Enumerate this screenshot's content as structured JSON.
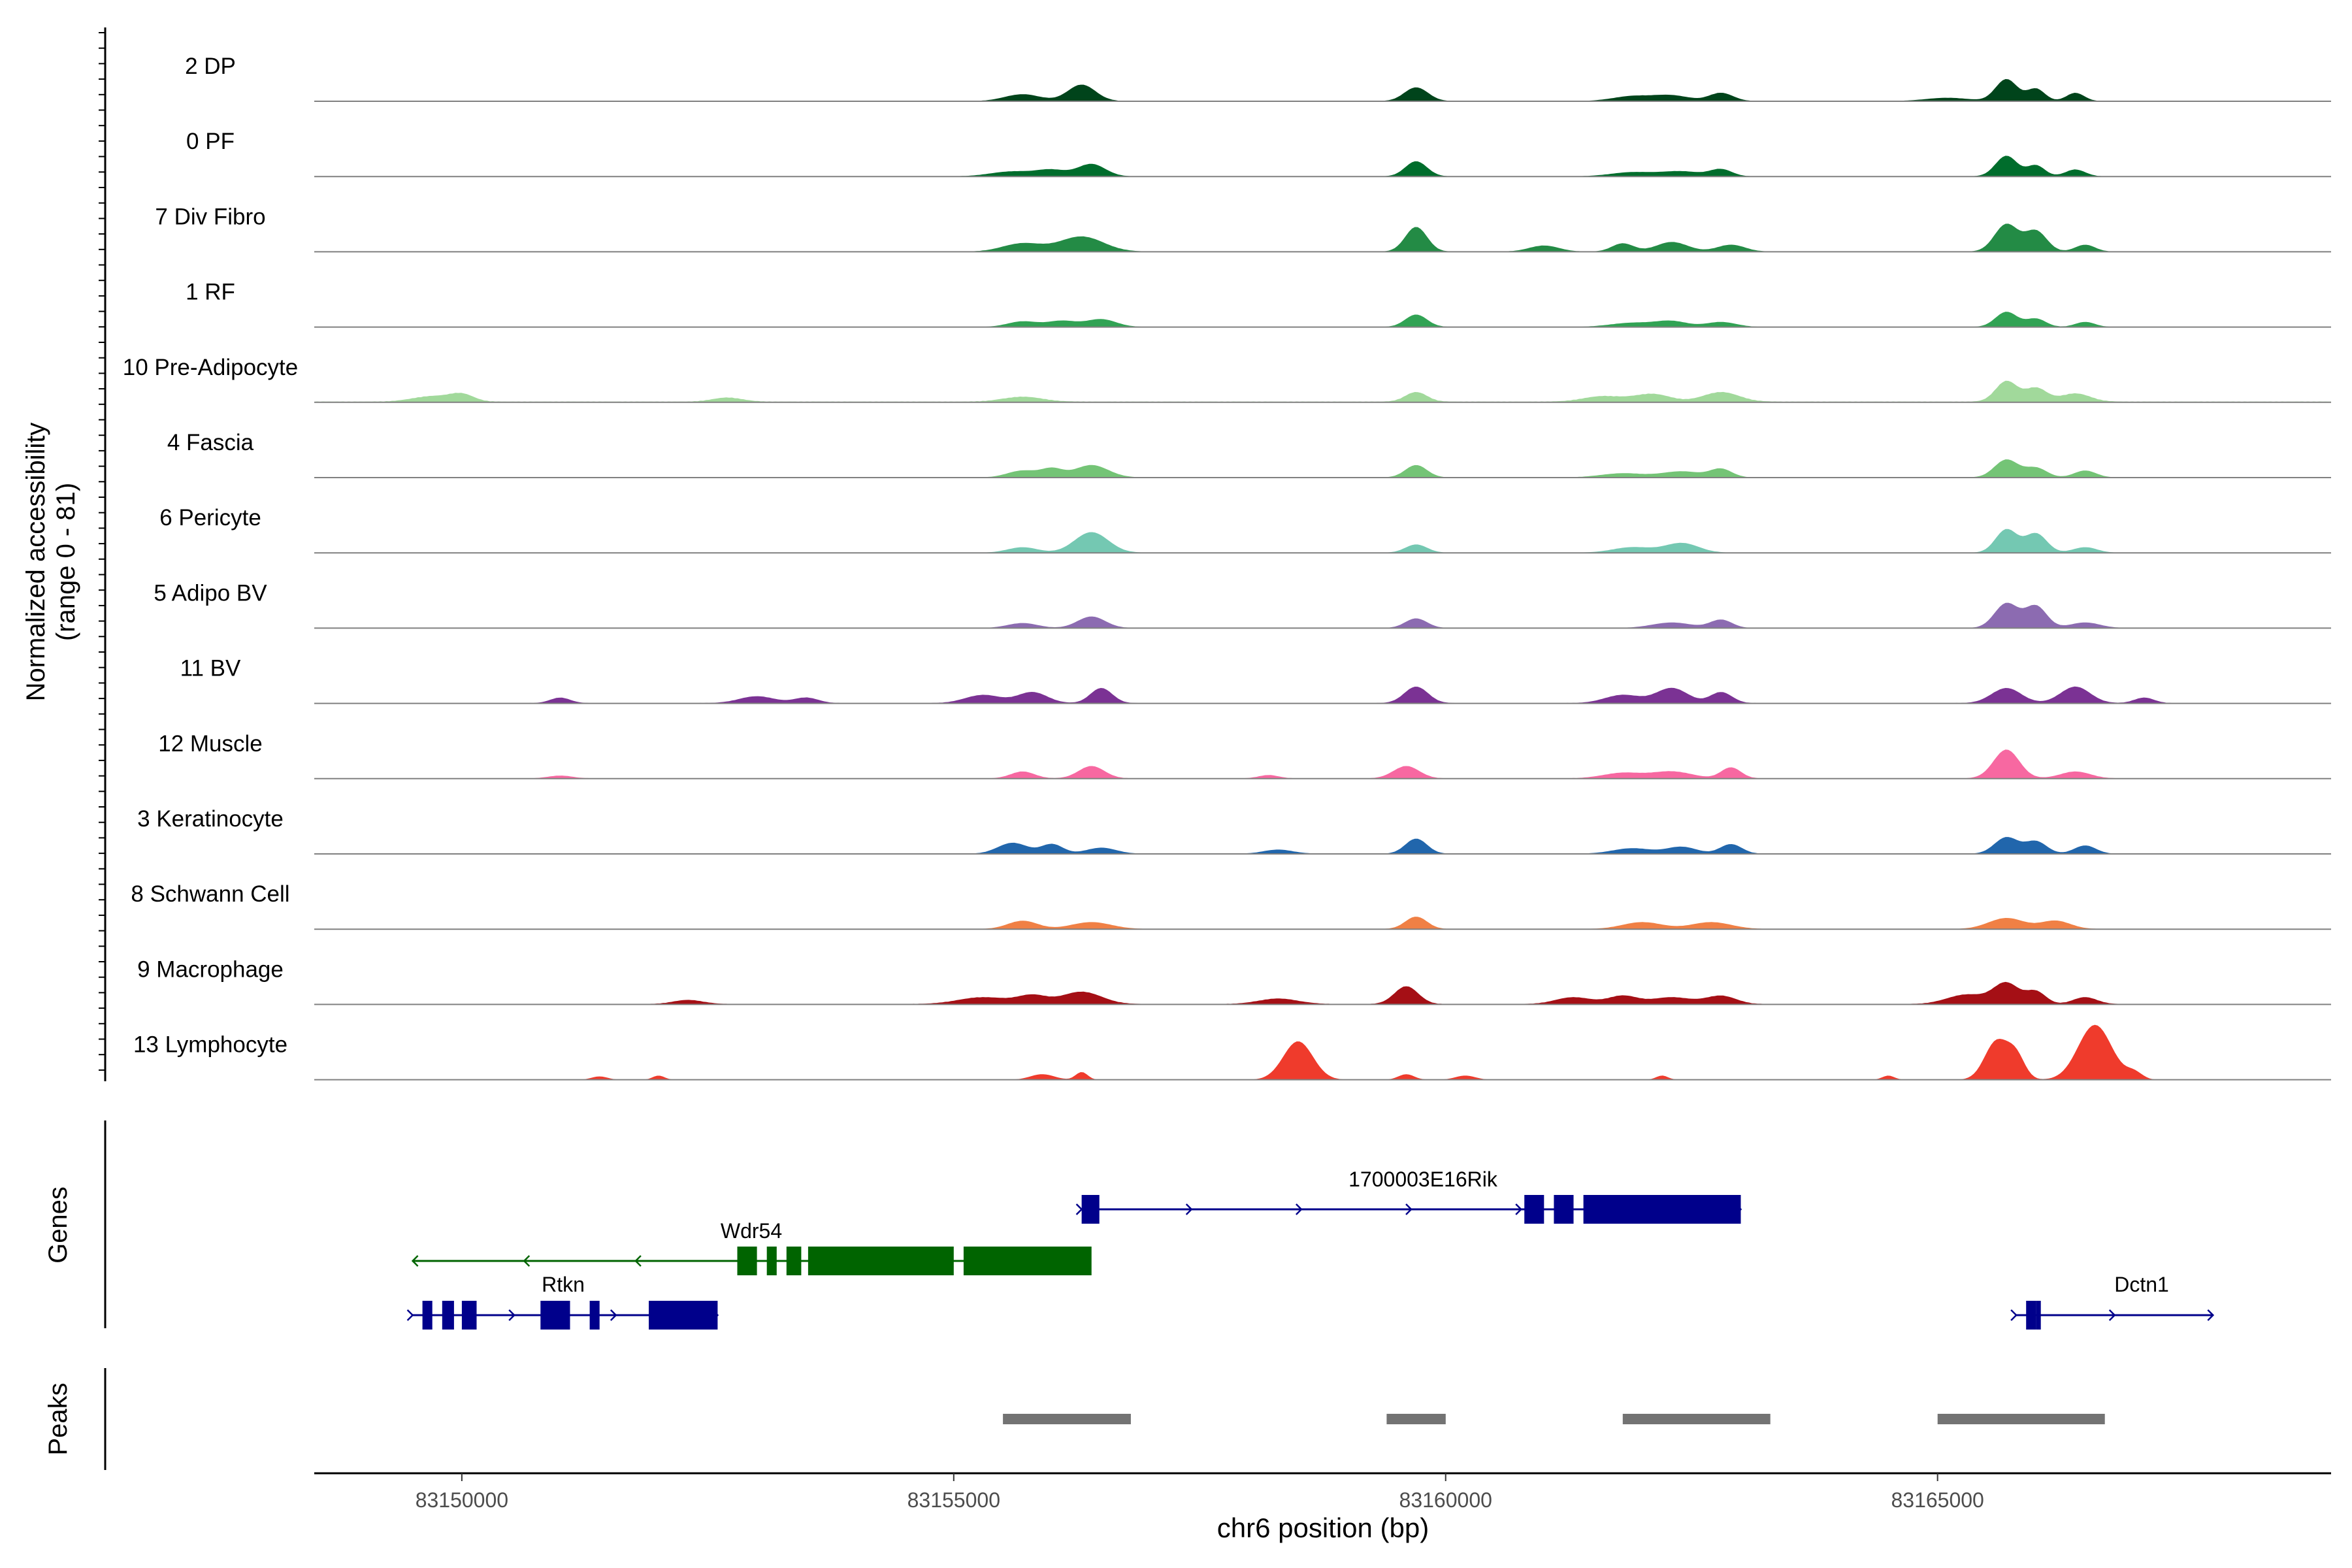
{
  "chart_data": {
    "type": "area",
    "chromosome": "chr6",
    "xlabel": "chr6 position (bp)",
    "ylabel_line1": "Normalized accessibility",
    "ylabel_line2": "(range 0 - 81)",
    "genes_panel_label": "Genes",
    "peaks_panel_label": "Peaks",
    "xlim": [
      83148500,
      83169000
    ],
    "ylim": [
      0,
      81
    ],
    "x_ticks": [
      83150000,
      83155000,
      83160000,
      83165000
    ],
    "x_tick_labels": [
      "83150000",
      "83155000",
      "83160000",
      "83165000"
    ],
    "tracks": [
      {
        "name": "2 DP",
        "color": "#00441b",
        "baseline": 0.4,
        "peaks": [
          [
            83155700,
            0.25,
            180
          ],
          [
            83156300,
            0.6,
            140
          ],
          [
            83159700,
            0.5,
            120
          ],
          [
            83161900,
            0.18,
            200
          ],
          [
            83162300,
            0.2,
            180
          ],
          [
            83162800,
            0.3,
            120
          ],
          [
            83165700,
            0.8,
            110
          ],
          [
            83166000,
            0.45,
            90
          ],
          [
            83166400,
            0.3,
            90
          ],
          [
            83165100,
            0.12,
            220
          ]
        ]
      },
      {
        "name": "0 PF",
        "color": "#006d2c",
        "baseline": 0.4,
        "peaks": [
          [
            83155600,
            0.18,
            220
          ],
          [
            83156000,
            0.22,
            150
          ],
          [
            83156400,
            0.45,
            140
          ],
          [
            83159700,
            0.55,
            110
          ],
          [
            83161900,
            0.15,
            220
          ],
          [
            83162400,
            0.18,
            200
          ],
          [
            83162800,
            0.25,
            110
          ],
          [
            83165700,
            0.75,
            110
          ],
          [
            83166000,
            0.4,
            90
          ],
          [
            83166400,
            0.25,
            100
          ]
        ]
      },
      {
        "name": "7 Div Fibro",
        "color": "#238b45",
        "baseline": 0.45,
        "peaks": [
          [
            83155700,
            0.3,
            200
          ],
          [
            83156300,
            0.55,
            220
          ],
          [
            83159700,
            0.9,
            110
          ],
          [
            83161000,
            0.22,
            150
          ],
          [
            83161800,
            0.3,
            110
          ],
          [
            83162300,
            0.35,
            160
          ],
          [
            83162900,
            0.25,
            140
          ],
          [
            83165700,
            1.0,
            120
          ],
          [
            83166000,
            0.75,
            110
          ],
          [
            83166500,
            0.25,
            100
          ]
        ]
      },
      {
        "name": "1 RF",
        "color": "#31a354",
        "baseline": 0.35,
        "peaks": [
          [
            83155700,
            0.2,
            150
          ],
          [
            83156100,
            0.22,
            150
          ],
          [
            83156500,
            0.28,
            150
          ],
          [
            83159700,
            0.45,
            110
          ],
          [
            83161900,
            0.15,
            220
          ],
          [
            83162300,
            0.2,
            160
          ],
          [
            83162800,
            0.18,
            150
          ],
          [
            83165700,
            0.55,
            110
          ],
          [
            83166000,
            0.3,
            100
          ],
          [
            83166500,
            0.18,
            100
          ]
        ]
      },
      {
        "name": "10 Pre-Adipocyte",
        "color": "#a1d99b",
        "baseline": 1.3,
        "peaks": [
          [
            83149700,
            0.2,
            200
          ],
          [
            83150000,
            0.25,
            120
          ],
          [
            83152700,
            0.15,
            150
          ],
          [
            83155700,
            0.18,
            200
          ],
          [
            83159700,
            0.35,
            110
          ],
          [
            83161600,
            0.2,
            200
          ],
          [
            83162100,
            0.28,
            180
          ],
          [
            83162800,
            0.35,
            180
          ],
          [
            83165700,
            0.75,
            110
          ],
          [
            83166000,
            0.5,
            110
          ],
          [
            83166400,
            0.3,
            150
          ]
        ]
      },
      {
        "name": "4 Fascia",
        "color": "#74c476",
        "baseline": 0.4,
        "peaks": [
          [
            83155700,
            0.25,
            150
          ],
          [
            83156000,
            0.3,
            110
          ],
          [
            83156400,
            0.45,
            170
          ],
          [
            83159700,
            0.45,
            110
          ],
          [
            83161800,
            0.15,
            220
          ],
          [
            83162400,
            0.22,
            200
          ],
          [
            83162800,
            0.3,
            110
          ],
          [
            83165700,
            0.65,
            120
          ],
          [
            83166000,
            0.35,
            110
          ],
          [
            83166500,
            0.25,
            110
          ]
        ]
      },
      {
        "name": "6 Pericyte",
        "color": "#74c8b2",
        "baseline": 0.35,
        "peaks": [
          [
            83155700,
            0.2,
            150
          ],
          [
            83156400,
            0.75,
            170
          ],
          [
            83159700,
            0.3,
            110
          ],
          [
            83161900,
            0.2,
            200
          ],
          [
            83162400,
            0.35,
            170
          ],
          [
            83165700,
            0.85,
            110
          ],
          [
            83166000,
            0.7,
            110
          ],
          [
            83166500,
            0.2,
            120
          ]
        ]
      },
      {
        "name": "5 Adipo BV",
        "color": "#8c6bb1",
        "baseline": 0.3,
        "peaks": [
          [
            83155700,
            0.18,
            150
          ],
          [
            83156400,
            0.42,
            140
          ],
          [
            83159700,
            0.35,
            110
          ],
          [
            83162300,
            0.2,
            200
          ],
          [
            83162800,
            0.3,
            110
          ],
          [
            83165700,
            0.9,
            120
          ],
          [
            83166000,
            0.8,
            110
          ],
          [
            83166500,
            0.2,
            150
          ]
        ]
      },
      {
        "name": "11 BV",
        "color": "#7b3294",
        "baseline": 0.6,
        "peaks": [
          [
            83151000,
            0.2,
            100
          ],
          [
            83153000,
            0.25,
            180
          ],
          [
            83153500,
            0.2,
            120
          ],
          [
            83155300,
            0.3,
            180
          ],
          [
            83155800,
            0.4,
            150
          ],
          [
            83156500,
            0.55,
            110
          ],
          [
            83159700,
            0.6,
            120
          ],
          [
            83161800,
            0.3,
            180
          ],
          [
            83162300,
            0.55,
            160
          ],
          [
            83162800,
            0.4,
            110
          ],
          [
            83165700,
            0.55,
            150
          ],
          [
            83166400,
            0.6,
            150
          ],
          [
            83167100,
            0.2,
            100
          ]
        ]
      },
      {
        "name": "12 Muscle",
        "color": "#f768a1",
        "baseline": 0.6,
        "peaks": [
          [
            83151000,
            0.1,
            120
          ],
          [
            83155700,
            0.25,
            120
          ],
          [
            83156400,
            0.45,
            130
          ],
          [
            83158200,
            0.12,
            100
          ],
          [
            83159600,
            0.45,
            130
          ],
          [
            83161800,
            0.2,
            200
          ],
          [
            83162300,
            0.25,
            200
          ],
          [
            83162900,
            0.4,
            100
          ],
          [
            83165700,
            1.05,
            130
          ],
          [
            83166400,
            0.25,
            150
          ]
        ]
      },
      {
        "name": "3 Keratinocyte",
        "color": "#2166ac",
        "baseline": 0.4,
        "peaks": [
          [
            83155600,
            0.4,
            150
          ],
          [
            83156000,
            0.35,
            110
          ],
          [
            83156500,
            0.22,
            150
          ],
          [
            83158300,
            0.15,
            150
          ],
          [
            83159700,
            0.55,
            110
          ],
          [
            83161900,
            0.2,
            200
          ],
          [
            83162400,
            0.25,
            150
          ],
          [
            83162900,
            0.35,
            110
          ],
          [
            83165700,
            0.6,
            120
          ],
          [
            83166000,
            0.45,
            110
          ],
          [
            83166500,
            0.3,
            110
          ]
        ]
      },
      {
        "name": "8 Schwann Cell",
        "color": "#f08045",
        "baseline": 0.4,
        "peaks": [
          [
            83155700,
            0.3,
            150
          ],
          [
            83156400,
            0.25,
            200
          ],
          [
            83159700,
            0.45,
            110
          ],
          [
            83162000,
            0.25,
            200
          ],
          [
            83162700,
            0.25,
            200
          ],
          [
            83165700,
            0.4,
            180
          ],
          [
            83166200,
            0.3,
            150
          ]
        ]
      },
      {
        "name": "9 Macrophage",
        "color": "#a50f15",
        "baseline": 0.8,
        "peaks": [
          [
            83152300,
            0.15,
            150
          ],
          [
            83155300,
            0.25,
            250
          ],
          [
            83155800,
            0.3,
            150
          ],
          [
            83156300,
            0.45,
            200
          ],
          [
            83158300,
            0.2,
            200
          ],
          [
            83159600,
            0.65,
            120
          ],
          [
            83161300,
            0.25,
            180
          ],
          [
            83161800,
            0.3,
            150
          ],
          [
            83162300,
            0.25,
            200
          ],
          [
            83162800,
            0.3,
            150
          ],
          [
            83165300,
            0.35,
            200
          ],
          [
            83165700,
            0.75,
            130
          ],
          [
            83166000,
            0.45,
            100
          ],
          [
            83166500,
            0.25,
            120
          ]
        ]
      },
      {
        "name": "13 Lymphocyte",
        "color": "#ef3b2c",
        "baseline": 0,
        "peaks": [
          [
            83151400,
            0.12,
            80
          ],
          [
            83152000,
            0.15,
            60
          ],
          [
            83155900,
            0.2,
            120
          ],
          [
            83156300,
            0.28,
            60
          ],
          [
            83158500,
            1.4,
            150
          ],
          [
            83159600,
            0.2,
            80
          ],
          [
            83160200,
            0.15,
            100
          ],
          [
            83162200,
            0.15,
            60
          ],
          [
            83164500,
            0.15,
            60
          ],
          [
            83165600,
            1.4,
            120
          ],
          [
            83165800,
            0.8,
            90
          ],
          [
            83166600,
            2.0,
            170
          ],
          [
            83167000,
            0.25,
            80
          ]
        ]
      }
    ],
    "genes": [
      {
        "name": "1700003E16Rik",
        "row": 0,
        "strand": "+",
        "color": "#00008b",
        "start": 83156300,
        "end": 83163000,
        "exons": [
          [
            83156300,
            83156480
          ],
          [
            83160800,
            83161000
          ],
          [
            83161100,
            83161300
          ],
          [
            83161400,
            83163000
          ]
        ]
      },
      {
        "name": "Wdr54",
        "row": 1,
        "strand": "-",
        "color": "#006400",
        "start": 83149500,
        "end": 83156300,
        "exons": [
          [
            83152800,
            83153000
          ],
          [
            83153100,
            83153200
          ],
          [
            83153300,
            83153450
          ],
          [
            83153520,
            83155000
          ],
          [
            83155100,
            83156400
          ]
        ]
      },
      {
        "name": "Rtkn",
        "row": 2,
        "strand": "+",
        "color": "#00008b",
        "start": 83149500,
        "end": 83152600,
        "exons": [
          [
            83149600,
            83149700
          ],
          [
            83149800,
            83149920
          ],
          [
            83150000,
            83150150
          ],
          [
            83150800,
            83151100
          ],
          [
            83151300,
            83151400
          ],
          [
            83151900,
            83152600
          ]
        ]
      },
      {
        "name": "Dctn1",
        "row": 2,
        "strand": "+",
        "color": "#00008b",
        "start": 83165800,
        "end": 83167800,
        "exons": [
          [
            83165900,
            83166000
          ],
          [
            83166000,
            83166050
          ]
        ]
      }
    ],
    "peaks": [
      [
        83155500,
        83156800
      ],
      [
        83159400,
        83160000
      ],
      [
        83161800,
        83163300
      ],
      [
        83165000,
        83166700
      ]
    ]
  }
}
